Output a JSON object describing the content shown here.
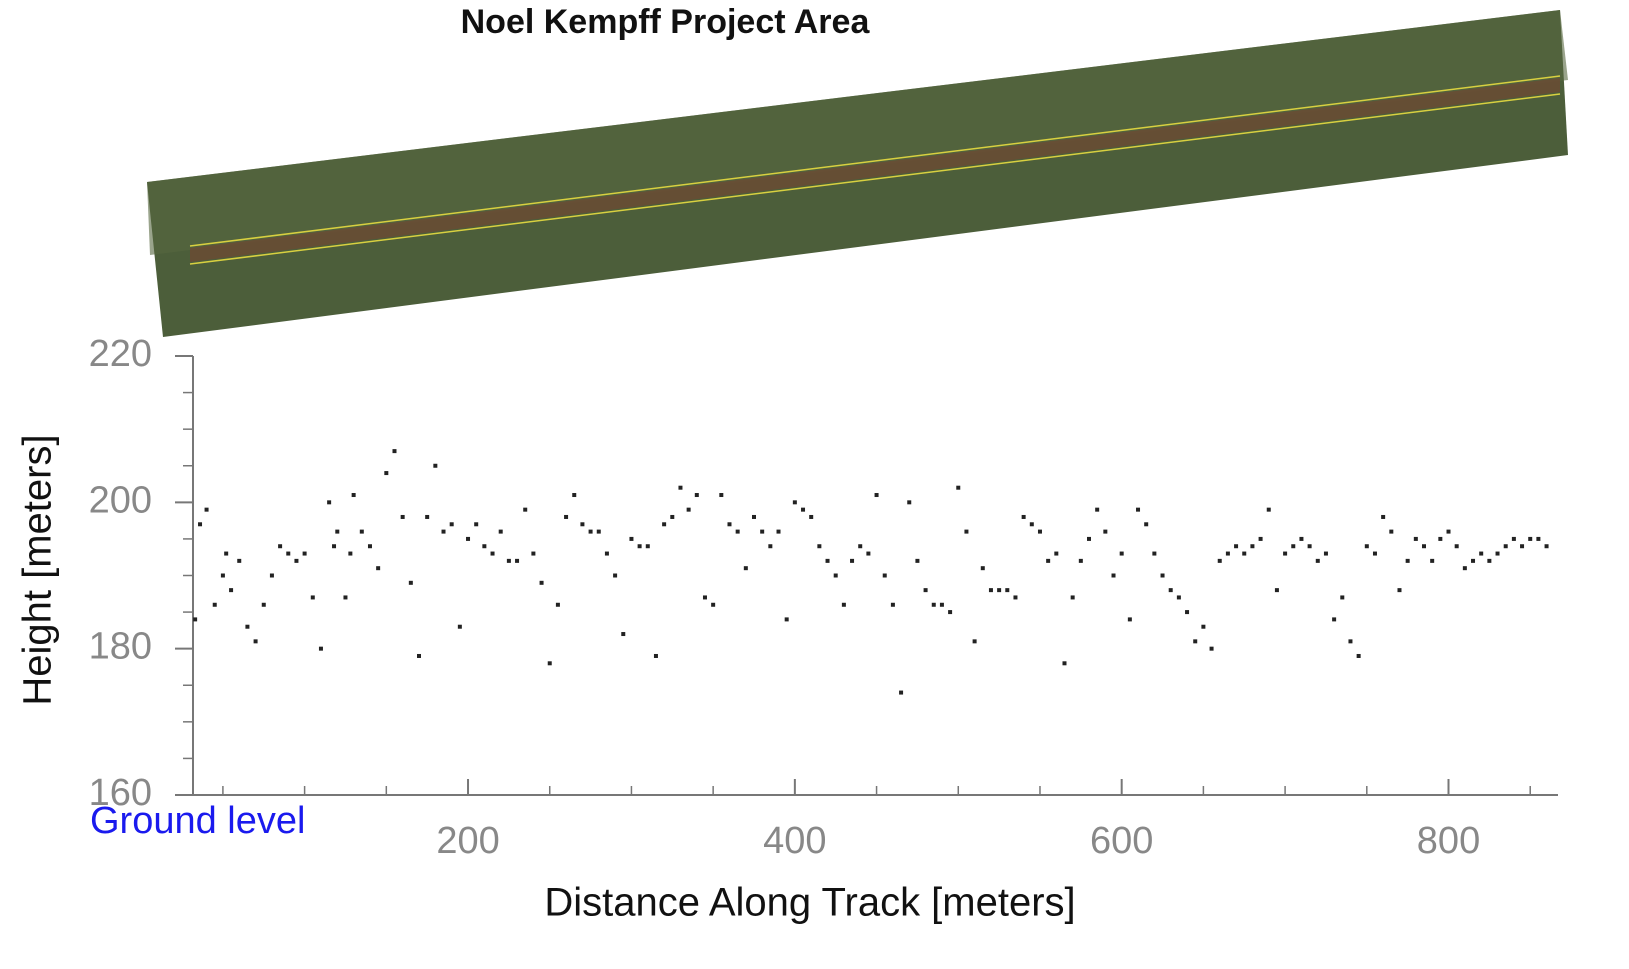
{
  "chart_data": {
    "type": "scatter",
    "title": "Noel Kempff Project Area",
    "xlabel": "Distance Along Track [meters]",
    "ylabel": "Height [meters]",
    "annotation": "Ground level",
    "color": "#222222",
    "xlim": [
      31.7,
      867
    ],
    "ylim": [
      160,
      220
    ],
    "xticks": [
      200,
      400,
      600,
      800
    ],
    "yticks": [
      160,
      180,
      200,
      220
    ],
    "xminorticks": [
      50,
      100,
      150,
      250,
      300,
      350,
      450,
      500,
      550,
      650,
      700,
      750,
      850
    ],
    "yminorticks": [
      165,
      170,
      175,
      185,
      190,
      195,
      205,
      210,
      215
    ],
    "x": [
      33,
      36,
      40,
      45,
      50,
      52,
      55,
      60,
      65,
      70,
      75,
      80,
      85,
      90,
      95,
      100,
      105,
      110,
      115,
      118,
      120,
      125,
      128,
      130,
      135,
      140,
      145,
      150,
      155,
      160,
      165,
      170,
      175,
      180,
      185,
      190,
      195,
      200,
      205,
      210,
      215,
      220,
      225,
      230,
      235,
      240,
      245,
      250,
      255,
      260,
      265,
      270,
      275,
      280,
      285,
      290,
      295,
      300,
      305,
      310,
      315,
      320,
      325,
      330,
      335,
      340,
      345,
      350,
      355,
      360,
      365,
      370,
      375,
      380,
      385,
      390,
      395,
      400,
      405,
      410,
      415,
      420,
      425,
      430,
      435,
      440,
      445,
      450,
      455,
      460,
      465,
      470,
      475,
      480,
      485,
      490,
      495,
      500,
      505,
      510,
      515,
      520,
      525,
      530,
      535,
      540,
      545,
      550,
      555,
      560,
      565,
      570,
      575,
      580,
      585,
      590,
      595,
      600,
      605,
      610,
      615,
      620,
      625,
      630,
      635,
      640,
      645,
      650,
      655,
      660,
      665,
      670,
      675,
      680,
      685,
      690,
      695,
      700,
      705,
      710,
      715,
      720,
      725,
      730,
      735,
      740,
      745,
      750,
      755,
      760,
      765,
      770,
      775,
      780,
      785,
      790,
      795,
      800,
      805,
      810,
      815,
      820,
      825,
      830,
      835,
      840,
      845,
      850,
      855,
      860
    ],
    "y": [
      184,
      197,
      199,
      186,
      190,
      193,
      188,
      192,
      183,
      181,
      186,
      190,
      194,
      193,
      192,
      193,
      187,
      180,
      200,
      194,
      196,
      187,
      193,
      201,
      196,
      194,
      191,
      204,
      207,
      198,
      189,
      179,
      198,
      205,
      196,
      197,
      183,
      195,
      197,
      194,
      193,
      196,
      192,
      192,
      199,
      193,
      189,
      178,
      186,
      198,
      201,
      197,
      196,
      196,
      193,
      190,
      182,
      195,
      194,
      194,
      179,
      197,
      198,
      202,
      199,
      201,
      187,
      186,
      201,
      197,
      196,
      191,
      198,
      196,
      194,
      196,
      184,
      200,
      199,
      198,
      194,
      192,
      190,
      186,
      192,
      194,
      193,
      201,
      190,
      186,
      174,
      200,
      192,
      188,
      186,
      186,
      185,
      202,
      196,
      181,
      191,
      188,
      188,
      188,
      187,
      198,
      197,
      196,
      192,
      193,
      178,
      187,
      192,
      195,
      199,
      196,
      190,
      193,
      184,
      199,
      197,
      193,
      190,
      188,
      187,
      185,
      181,
      183,
      180,
      192,
      193,
      194,
      193,
      194,
      195,
      199,
      188,
      193,
      194,
      195,
      194,
      192,
      193,
      184,
      187,
      181,
      179,
      194,
      193,
      198,
      196,
      188,
      192,
      195,
      194,
      192,
      195,
      196,
      194,
      191,
      192,
      193,
      192,
      193,
      194,
      195,
      194,
      195,
      195,
      194
    ]
  }
}
